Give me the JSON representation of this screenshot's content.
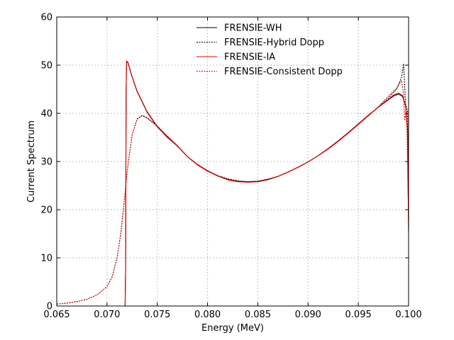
{
  "chart_data": {
    "type": "line",
    "title": "",
    "xlabel": "Energy (MeV)",
    "ylabel": "Current Spectrum",
    "xlim": [
      0.065,
      0.1
    ],
    "ylim": [
      0,
      60
    ],
    "xticks": [
      0.065,
      0.07,
      0.075,
      0.08,
      0.085,
      0.09,
      0.095,
      0.1
    ],
    "xtick_labels": [
      "0.065",
      "0.070",
      "0.075",
      "0.080",
      "0.085",
      "0.090",
      "0.095",
      "0.100"
    ],
    "yticks": [
      0,
      10,
      20,
      30,
      40,
      50,
      60
    ],
    "ytick_labels": [
      "0",
      "10",
      "20",
      "30",
      "40",
      "50",
      "60"
    ],
    "grid": true,
    "legend_position": "top",
    "series": [
      {
        "name": "FRENSIE-WH",
        "color": "#000000",
        "dash": "solid",
        "points": [
          [
            0.0718,
            0
          ],
          [
            0.07185,
            8
          ],
          [
            0.0719,
            45
          ],
          [
            0.07195,
            50.8
          ],
          [
            0.0721,
            50.4
          ],
          [
            0.0725,
            47.5
          ],
          [
            0.073,
            44.5
          ],
          [
            0.074,
            40.2
          ],
          [
            0.075,
            37.2
          ],
          [
            0.076,
            35.0
          ],
          [
            0.077,
            33.2
          ],
          [
            0.078,
            31.0
          ],
          [
            0.079,
            29.3
          ],
          [
            0.08,
            28.0
          ],
          [
            0.081,
            27.0
          ],
          [
            0.082,
            26.3
          ],
          [
            0.083,
            25.9
          ],
          [
            0.084,
            25.8
          ],
          [
            0.085,
            25.9
          ],
          [
            0.086,
            26.3
          ],
          [
            0.087,
            26.9
          ],
          [
            0.088,
            27.8
          ],
          [
            0.089,
            28.8
          ],
          [
            0.09,
            29.9
          ],
          [
            0.091,
            31.2
          ],
          [
            0.092,
            32.7
          ],
          [
            0.093,
            34.3
          ],
          [
            0.094,
            36.0
          ],
          [
            0.095,
            37.8
          ],
          [
            0.096,
            39.6
          ],
          [
            0.097,
            41.3
          ],
          [
            0.098,
            42.8
          ],
          [
            0.0985,
            43.6
          ],
          [
            0.099,
            44.0
          ],
          [
            0.0994,
            43.5
          ],
          [
            0.0997,
            41.5
          ],
          [
            0.0999,
            36.0
          ],
          [
            0.1,
            15.5
          ]
        ]
      },
      {
        "name": "FRENSIE-Hybrid Dopp",
        "color": "#000000",
        "dash": "dotted",
        "points": [
          [
            0.065,
            0.4
          ],
          [
            0.066,
            0.6
          ],
          [
            0.067,
            0.9
          ],
          [
            0.068,
            1.4
          ],
          [
            0.069,
            2.3
          ],
          [
            0.07,
            4.0
          ],
          [
            0.0705,
            6.0
          ],
          [
            0.071,
            10.0
          ],
          [
            0.0714,
            15.5
          ],
          [
            0.0718,
            23.5
          ],
          [
            0.072,
            28.0
          ],
          [
            0.0725,
            35.5
          ],
          [
            0.073,
            38.8
          ],
          [
            0.0735,
            39.5
          ],
          [
            0.074,
            39.0
          ],
          [
            0.075,
            37.3
          ],
          [
            0.076,
            35.2
          ],
          [
            0.077,
            33.3
          ],
          [
            0.078,
            31.0
          ],
          [
            0.079,
            29.4
          ],
          [
            0.08,
            28.1
          ],
          [
            0.081,
            27.1
          ],
          [
            0.082,
            26.4
          ],
          [
            0.083,
            26.0
          ],
          [
            0.084,
            25.8
          ],
          [
            0.085,
            25.9
          ],
          [
            0.086,
            26.3
          ],
          [
            0.087,
            26.9
          ],
          [
            0.088,
            27.8
          ],
          [
            0.089,
            28.8
          ],
          [
            0.09,
            29.9
          ],
          [
            0.091,
            31.2
          ],
          [
            0.092,
            32.6
          ],
          [
            0.093,
            34.2
          ],
          [
            0.094,
            35.9
          ],
          [
            0.095,
            37.7
          ],
          [
            0.096,
            39.5
          ],
          [
            0.097,
            41.3
          ],
          [
            0.098,
            43.2
          ],
          [
            0.0988,
            45.0
          ],
          [
            0.0993,
            47.5
          ],
          [
            0.0995,
            50.3
          ],
          [
            0.0997,
            42.0
          ],
          [
            0.0999,
            40.5
          ],
          [
            0.1,
            20.0
          ]
        ]
      },
      {
        "name": "FRENSIE-IA",
        "color": "#e00000",
        "dash": "solid",
        "points": [
          [
            0.0718,
            0
          ],
          [
            0.07185,
            8
          ],
          [
            0.0719,
            45
          ],
          [
            0.07195,
            50.9
          ],
          [
            0.0721,
            50.5
          ],
          [
            0.0725,
            47.6
          ],
          [
            0.073,
            44.6
          ],
          [
            0.074,
            40.3
          ],
          [
            0.075,
            37.3
          ],
          [
            0.076,
            35.1
          ],
          [
            0.077,
            33.2
          ],
          [
            0.078,
            31.0
          ],
          [
            0.079,
            29.3
          ],
          [
            0.08,
            28.0
          ],
          [
            0.081,
            27.0
          ],
          [
            0.082,
            26.2
          ],
          [
            0.083,
            25.8
          ],
          [
            0.084,
            25.7
          ],
          [
            0.085,
            25.8
          ],
          [
            0.086,
            26.2
          ],
          [
            0.087,
            26.9
          ],
          [
            0.088,
            27.8
          ],
          [
            0.089,
            28.8
          ],
          [
            0.09,
            29.9
          ],
          [
            0.091,
            31.2
          ],
          [
            0.092,
            32.7
          ],
          [
            0.093,
            34.3
          ],
          [
            0.094,
            36.0
          ],
          [
            0.095,
            37.8
          ],
          [
            0.096,
            39.6
          ],
          [
            0.097,
            41.3
          ],
          [
            0.098,
            42.9
          ],
          [
            0.0985,
            43.8
          ],
          [
            0.099,
            44.2
          ],
          [
            0.0994,
            43.7
          ],
          [
            0.0997,
            41.6
          ],
          [
            0.0999,
            36.0
          ],
          [
            0.1,
            15.5
          ]
        ]
      },
      {
        "name": "FRENSIE-Consistent Dopp",
        "color": "#e00000",
        "dash": "dotted",
        "points": [
          [
            0.065,
            0.4
          ],
          [
            0.066,
            0.6
          ],
          [
            0.067,
            0.9
          ],
          [
            0.068,
            1.4
          ],
          [
            0.069,
            2.3
          ],
          [
            0.07,
            4.0
          ],
          [
            0.0705,
            6.0
          ],
          [
            0.071,
            10.0
          ],
          [
            0.0714,
            15.5
          ],
          [
            0.0718,
            23.5
          ],
          [
            0.072,
            28.0
          ],
          [
            0.0725,
            35.5
          ],
          [
            0.073,
            38.9
          ],
          [
            0.0735,
            39.6
          ],
          [
            0.074,
            39.1
          ],
          [
            0.075,
            37.4
          ],
          [
            0.076,
            35.3
          ],
          [
            0.077,
            33.3
          ],
          [
            0.078,
            31.0
          ],
          [
            0.079,
            29.4
          ],
          [
            0.08,
            28.1
          ],
          [
            0.081,
            27.0
          ],
          [
            0.082,
            26.3
          ],
          [
            0.083,
            25.9
          ],
          [
            0.084,
            25.7
          ],
          [
            0.085,
            25.8
          ],
          [
            0.086,
            26.2
          ],
          [
            0.087,
            26.9
          ],
          [
            0.088,
            27.8
          ],
          [
            0.089,
            28.8
          ],
          [
            0.09,
            29.9
          ],
          [
            0.091,
            31.2
          ],
          [
            0.092,
            32.6
          ],
          [
            0.093,
            34.2
          ],
          [
            0.094,
            35.9
          ],
          [
            0.095,
            37.7
          ],
          [
            0.096,
            39.5
          ],
          [
            0.097,
            41.4
          ],
          [
            0.098,
            43.6
          ],
          [
            0.0988,
            45.2
          ],
          [
            0.0993,
            46.8
          ],
          [
            0.0995,
            44.0
          ],
          [
            0.0996,
            38.5
          ],
          [
            0.0998,
            40.5
          ],
          [
            0.1,
            18.0
          ]
        ]
      }
    ]
  }
}
